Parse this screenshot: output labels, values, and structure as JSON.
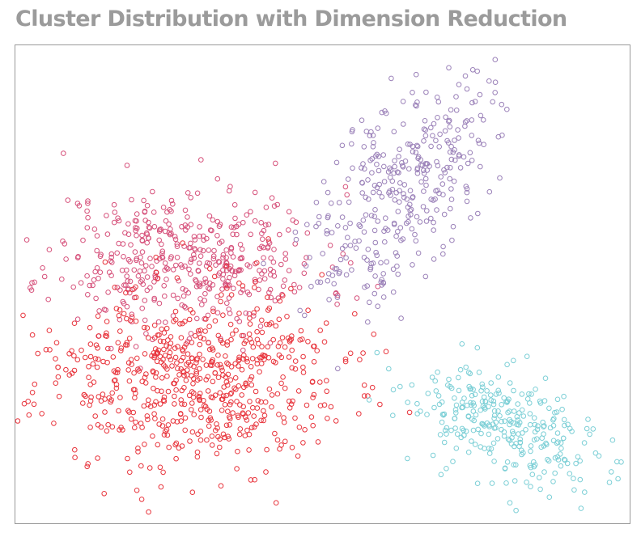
{
  "chart_data": {
    "type": "scatter",
    "title": "Cluster Distribution with Dimension Reduction",
    "xlabel": "",
    "ylabel": "",
    "xlim": [
      0,
      100
    ],
    "ylim": [
      0,
      100
    ],
    "grid": false,
    "axes_ticks": false,
    "legend": "none",
    "marker": "hollow-circle",
    "clusters": [
      {
        "color": "#d6507a",
        "count": 450,
        "center": [
          27.9,
          55.2
        ],
        "std": [
          11.2,
          7.6
        ],
        "corr": 0.0,
        "seed": 11
      },
      {
        "color": "#e8343c",
        "count": 650,
        "center": [
          27.9,
          29.9
        ],
        "std": [
          12.5,
          9.3
        ],
        "corr": 0.0,
        "seed": 23
      },
      {
        "color": "#9a80b8",
        "count": 350,
        "center": [
          62.8,
          70.4
        ],
        "std": [
          7.2,
          11.8
        ],
        "corr": 0.55,
        "seed": 37
      },
      {
        "color": "#7ccfd6",
        "count": 300,
        "center": [
          80.5,
          19.8
        ],
        "std": [
          8.6,
          6.8
        ],
        "corr": -0.5,
        "seed": 53
      }
    ]
  }
}
